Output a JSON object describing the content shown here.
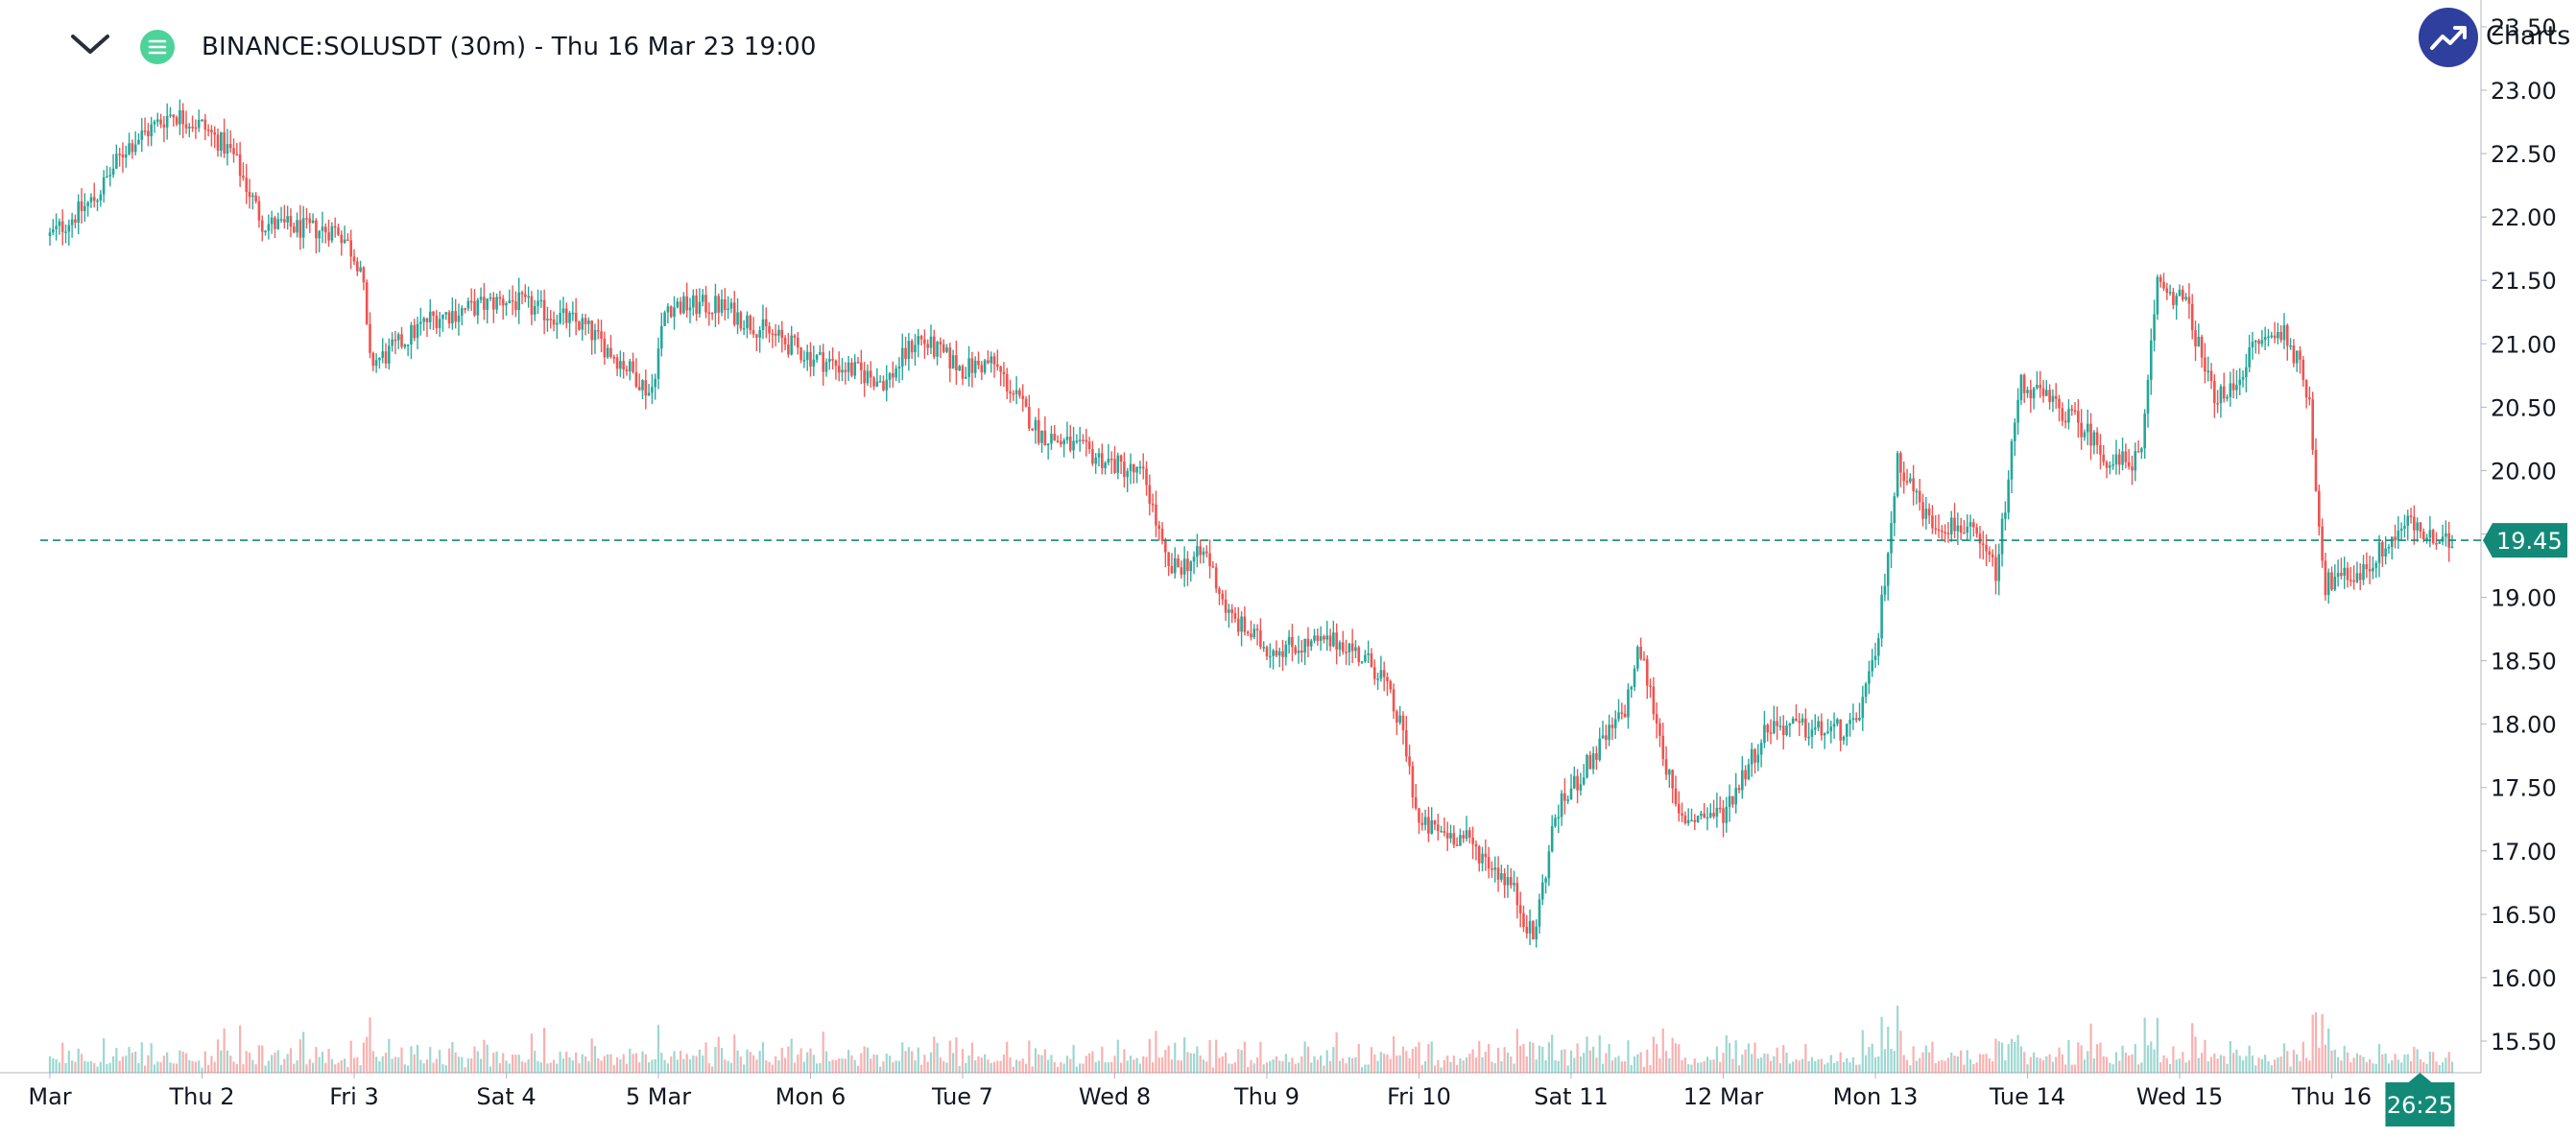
{
  "header": {
    "title": "BINANCE:SOLUSDT (30m) - Thu 16 Mar 23 19:00",
    "logo_text": "Charts p"
  },
  "colors": {
    "up": "#26a69a",
    "down": "#ef5350",
    "last_price": "#138a78",
    "axis": "#787b86",
    "text": "#131722"
  },
  "chart_data": {
    "type": "candlestick",
    "symbol": "BINANCE:SOLUSDT",
    "interval": "30m",
    "y_ticks": [
      "15.50",
      "16.00",
      "16.50",
      "17.00",
      "17.50",
      "18.00",
      "18.50",
      "19.00",
      "19.50",
      "20.00",
      "20.50",
      "21.00",
      "21.50",
      "22.00",
      "22.50",
      "23.00",
      "23.50"
    ],
    "ylim": [
      15.25,
      23.55
    ],
    "x_ticks": [
      "Mar",
      "Thu 2",
      "Fri 3",
      "Sat 4",
      "5 Mar",
      "Mon 6",
      "Tue 7",
      "Wed 8",
      "Thu 9",
      "Fri 10",
      "Sat 11",
      "12 Mar",
      "Mon 13",
      "Tue 14",
      "Wed 15",
      "Thu 16"
    ],
    "last_price": "19.45",
    "countdown": "26:25",
    "price_path": [
      {
        "x": 0.0,
        "price": 21.85
      },
      {
        "x": 0.3,
        "price": 22.15
      },
      {
        "x": 0.5,
        "price": 22.55
      },
      {
        "x": 0.8,
        "price": 22.82
      },
      {
        "x": 1.0,
        "price": 22.72
      },
      {
        "x": 1.2,
        "price": 22.5
      },
      {
        "x": 1.4,
        "price": 21.95
      },
      {
        "x": 1.7,
        "price": 21.9
      },
      {
        "x": 1.9,
        "price": 21.9
      },
      {
        "x": 2.05,
        "price": 21.6
      },
      {
        "x": 2.1,
        "price": 20.85
      },
      {
        "x": 2.2,
        "price": 20.9
      },
      {
        "x": 2.5,
        "price": 21.2
      },
      {
        "x": 3.0,
        "price": 21.35
      },
      {
        "x": 3.5,
        "price": 21.15
      },
      {
        "x": 3.85,
        "price": 20.75
      },
      {
        "x": 3.95,
        "price": 20.6
      },
      {
        "x": 4.05,
        "price": 21.3
      },
      {
        "x": 4.4,
        "price": 21.3
      },
      {
        "x": 5.0,
        "price": 20.9
      },
      {
        "x": 5.5,
        "price": 20.7
      },
      {
        "x": 5.7,
        "price": 21.05
      },
      {
        "x": 6.0,
        "price": 20.8
      },
      {
        "x": 6.2,
        "price": 20.85
      },
      {
        "x": 6.5,
        "price": 20.3
      },
      {
        "x": 6.9,
        "price": 20.1
      },
      {
        "x": 7.2,
        "price": 19.95
      },
      {
        "x": 7.35,
        "price": 19.2
      },
      {
        "x": 7.6,
        "price": 19.35
      },
      {
        "x": 7.75,
        "price": 18.85
      },
      {
        "x": 8.0,
        "price": 18.6
      },
      {
        "x": 8.5,
        "price": 18.65
      },
      {
        "x": 8.75,
        "price": 18.4
      },
      {
        "x": 8.9,
        "price": 17.9
      },
      {
        "x": 9.0,
        "price": 17.2
      },
      {
        "x": 9.3,
        "price": 17.1
      },
      {
        "x": 9.6,
        "price": 16.75
      },
      {
        "x": 9.75,
        "price": 16.3
      },
      {
        "x": 9.9,
        "price": 17.3
      },
      {
        "x": 10.15,
        "price": 17.75
      },
      {
        "x": 10.35,
        "price": 18.1
      },
      {
        "x": 10.45,
        "price": 18.6
      },
      {
        "x": 10.55,
        "price": 18.1
      },
      {
        "x": 10.7,
        "price": 17.25
      },
      {
        "x": 11.0,
        "price": 17.3
      },
      {
        "x": 11.3,
        "price": 18.0
      },
      {
        "x": 11.6,
        "price": 17.95
      },
      {
        "x": 11.85,
        "price": 17.95
      },
      {
        "x": 12.0,
        "price": 18.5
      },
      {
        "x": 12.15,
        "price": 20.1
      },
      {
        "x": 12.35,
        "price": 19.6
      },
      {
        "x": 12.6,
        "price": 19.55
      },
      {
        "x": 12.8,
        "price": 19.2
      },
      {
        "x": 12.95,
        "price": 20.7
      },
      {
        "x": 13.2,
        "price": 20.5
      },
      {
        "x": 13.4,
        "price": 20.3
      },
      {
        "x": 13.55,
        "price": 20.05
      },
      {
        "x": 13.75,
        "price": 20.1
      },
      {
        "x": 13.85,
        "price": 21.5
      },
      {
        "x": 14.05,
        "price": 21.3
      },
      {
        "x": 14.2,
        "price": 20.65
      },
      {
        "x": 14.3,
        "price": 20.55
      },
      {
        "x": 14.5,
        "price": 21.0
      },
      {
        "x": 14.7,
        "price": 21.1
      },
      {
        "x": 14.85,
        "price": 20.6
      },
      {
        "x": 14.95,
        "price": 19.1
      },
      {
        "x": 15.2,
        "price": 19.2
      },
      {
        "x": 15.5,
        "price": 19.6
      },
      {
        "x": 15.7,
        "price": 19.4
      },
      {
        "x": 15.8,
        "price": 19.45
      }
    ]
  }
}
